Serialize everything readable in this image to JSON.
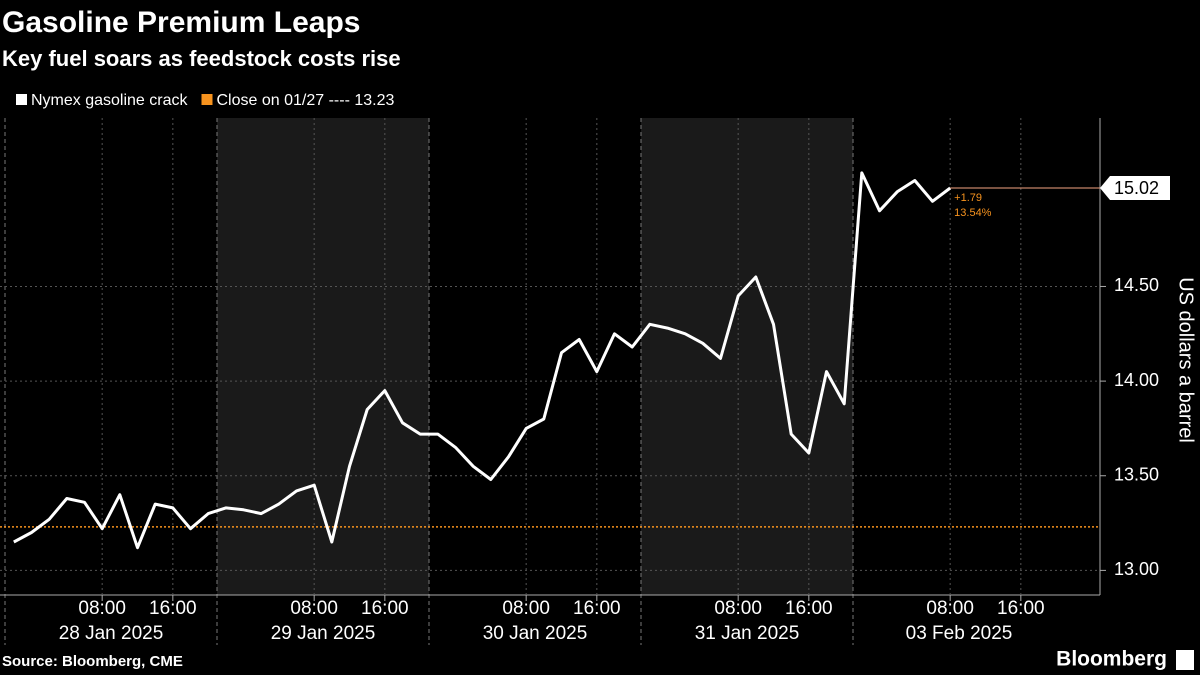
{
  "chart_data": {
    "type": "line",
    "title": "Gasoline Premium Leaps",
    "subtitle": "Key fuel soars as feedstock costs rise",
    "y_label": "US dollars a barrel",
    "source": "Source: Bloomberg, CME",
    "logo": "Bloomberg",
    "days": [
      "28 Jan 2025",
      "29 Jan 2025",
      "30 Jan 2025",
      "31 Jan 2025",
      "03 Feb 2025"
    ],
    "x": [
      "27 Jan 2025 22:00",
      "28 Jan 2025 00:00",
      "28 Jan 2025 02:00",
      "28 Jan 2025 04:00",
      "28 Jan 2025 06:00",
      "28 Jan 2025 08:00",
      "28 Jan 2025 10:00",
      "28 Jan 2025 12:00",
      "28 Jan 2025 14:00",
      "28 Jan 2025 16:00",
      "28 Jan 2025 18:00",
      "28 Jan 2025 20:00",
      "28 Jan 2025 22:00",
      "29 Jan 2025 00:00",
      "29 Jan 2025 02:00",
      "29 Jan 2025 04:00",
      "29 Jan 2025 06:00",
      "29 Jan 2025 08:00",
      "29 Jan 2025 10:00",
      "29 Jan 2025 12:00",
      "29 Jan 2025 14:00",
      "29 Jan 2025 16:00",
      "29 Jan 2025 18:00",
      "29 Jan 2025 20:00",
      "29 Jan 2025 22:00",
      "30 Jan 2025 00:00",
      "30 Jan 2025 02:00",
      "30 Jan 2025 04:00",
      "30 Jan 2025 06:00",
      "30 Jan 2025 08:00",
      "30 Jan 2025 10:00",
      "30 Jan 2025 12:00",
      "30 Jan 2025 14:00",
      "30 Jan 2025 16:00",
      "30 Jan 2025 18:00",
      "30 Jan 2025 20:00",
      "30 Jan 2025 22:00",
      "31 Jan 2025 00:00",
      "31 Jan 2025 02:00",
      "31 Jan 2025 04:00",
      "31 Jan 2025 06:00",
      "31 Jan 2025 08:00",
      "31 Jan 2025 10:00",
      "31 Jan 2025 12:00",
      "31 Jan 2025 14:00",
      "31 Jan 2025 16:00",
      "31 Jan 2025 18:00",
      "31 Jan 2025 20:00",
      "02 Feb 2025 22:00",
      "03 Feb 2025 00:00",
      "03 Feb 2025 02:00",
      "03 Feb 2025 04:00",
      "03 Feb 2025 06:00",
      "03 Feb 2025 08:00",
      "03 Feb 2025 10:00",
      "03 Feb 2025 12:00",
      "03 Feb 2025 14:00",
      "03 Feb 2025 16:00",
      "03 Feb 2025 18:00",
      "03 Feb 2025 20:00"
    ],
    "series": [
      {
        "name": "Nymex gasoline crack",
        "color": "#ffffff",
        "values": [
          13.15,
          13.2,
          13.27,
          13.38,
          13.36,
          13.22,
          13.4,
          13.12,
          13.35,
          13.33,
          13.22,
          13.3,
          13.33,
          13.32,
          13.3,
          13.35,
          13.42,
          13.45,
          13.15,
          13.55,
          13.85,
          13.95,
          13.78,
          13.72,
          13.72,
          13.65,
          13.55,
          13.48,
          13.6,
          13.75,
          13.8,
          14.15,
          14.22,
          14.05,
          14.25,
          14.18,
          14.3,
          14.28,
          14.25,
          14.2,
          14.12,
          14.45,
          14.55,
          14.3,
          13.72,
          13.62,
          14.05,
          13.88,
          15.1,
          14.9,
          15.0,
          15.06,
          14.95,
          15.02,
          null,
          null,
          null,
          null,
          null,
          null
        ]
      }
    ],
    "reference_line": {
      "name": "Close on 01/27 ---- 13.23",
      "value": 13.23,
      "color": "#f7931e"
    },
    "last_value": 15.02,
    "change_label": "+1.79",
    "change_pct_label": "13.54%",
    "xticks": [
      {
        "value": "28 Jan 2025 08:00",
        "label": "08:00"
      },
      {
        "value": "28 Jan 2025 16:00",
        "label": "16:00"
      },
      {
        "value": "29 Jan 2025 08:00",
        "label": "08:00"
      },
      {
        "value": "29 Jan 2025 16:00",
        "label": "16:00"
      },
      {
        "value": "30 Jan 2025 08:00",
        "label": "08:00"
      },
      {
        "value": "30 Jan 2025 16:00",
        "label": "16:00"
      },
      {
        "value": "31 Jan 2025 08:00",
        "label": "08:00"
      },
      {
        "value": "31 Jan 2025 16:00",
        "label": "16:00"
      },
      {
        "value": "03 Feb 2025 08:00",
        "label": "08:00"
      },
      {
        "value": "03 Feb 2025 16:00",
        "label": "16:00"
      }
    ],
    "ylim": [
      12.87,
      15.39
    ],
    "yticks": [
      {
        "value": 13,
        "label": "13.00"
      },
      {
        "value": 13.5,
        "label": "13.50"
      },
      {
        "value": 14,
        "label": "14.00"
      },
      {
        "value": 14.5,
        "label": "14.50"
      }
    ],
    "grid": true
  }
}
